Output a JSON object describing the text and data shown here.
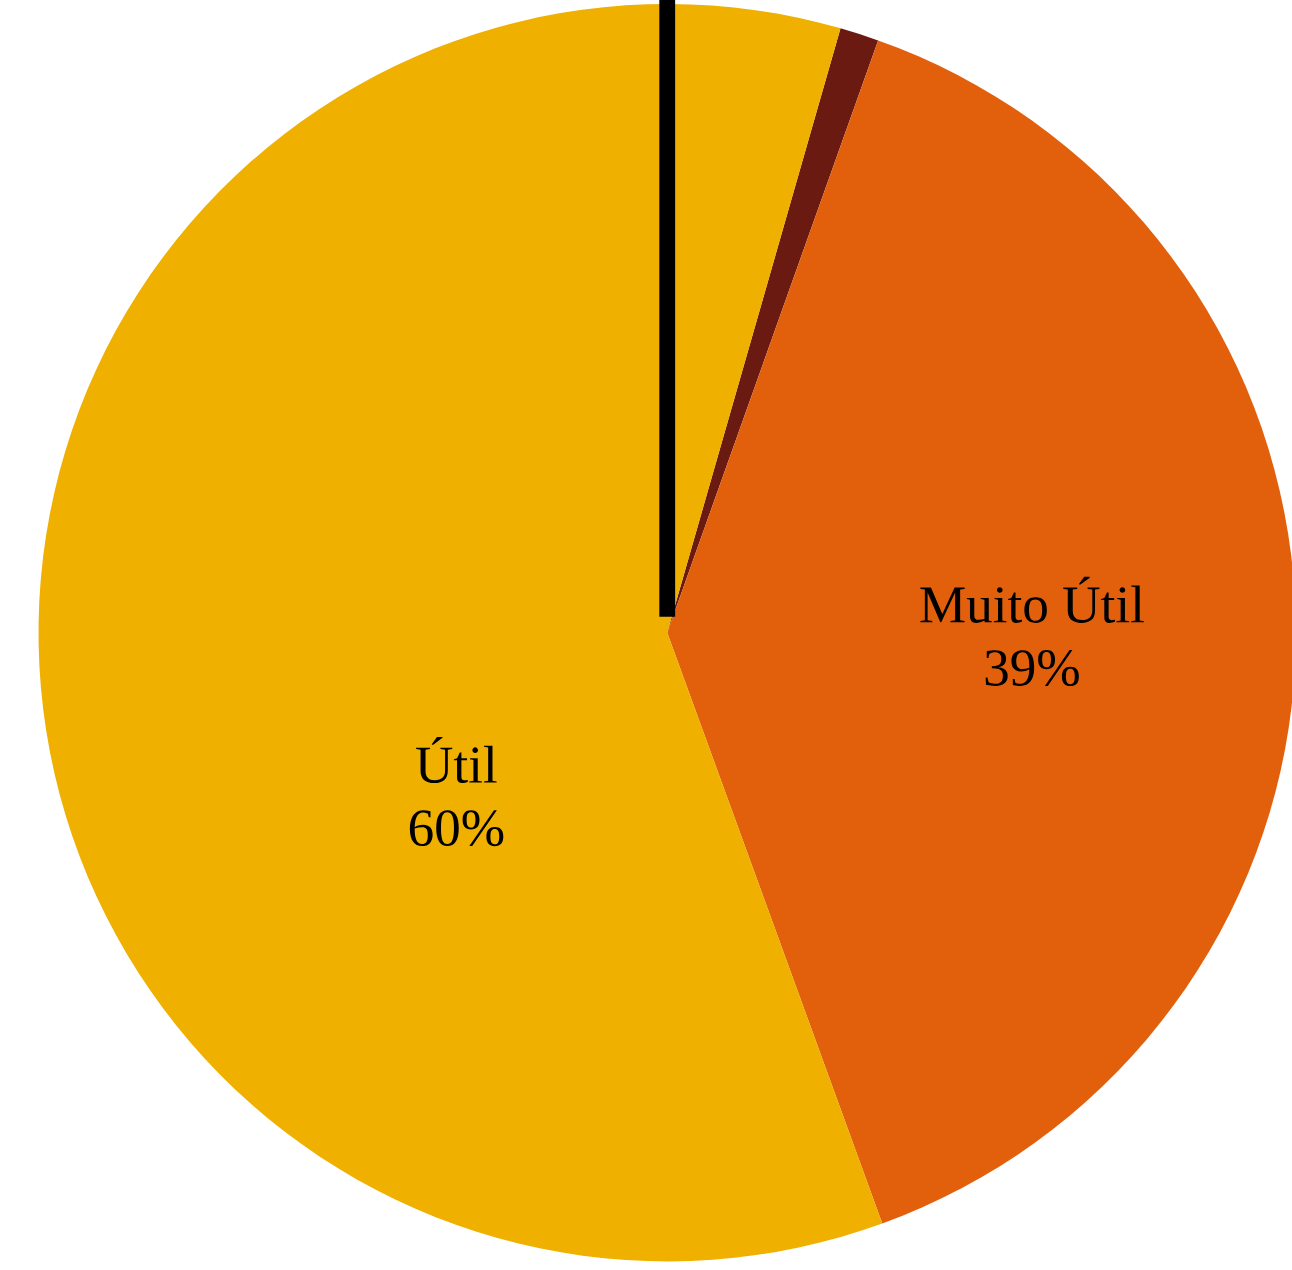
{
  "chart_data": {
    "type": "pie",
    "categories": [
      null,
      "Muito Útil",
      "Útil"
    ],
    "values": [
      1,
      39,
      60
    ],
    "colors": [
      "#6b1a12",
      "#e2600c",
      "#f0b000"
    ],
    "value_labels": [
      null,
      "39%",
      "60%"
    ],
    "legend": false,
    "needle": "Útil"
  }
}
